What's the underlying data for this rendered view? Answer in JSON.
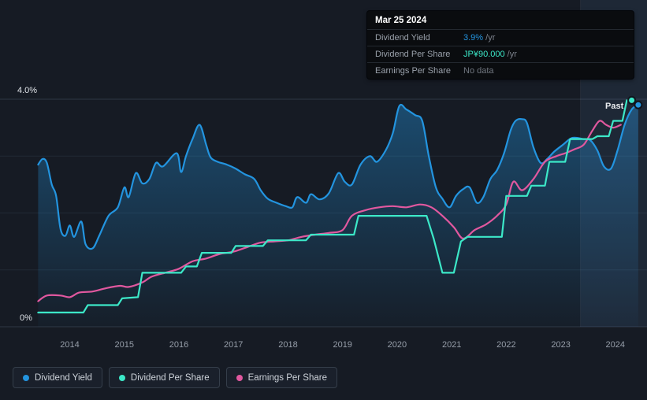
{
  "tooltip": {
    "date": "Mar 25 2024",
    "rows": [
      {
        "label": "Dividend Yield",
        "value": "3.9%",
        "suffix": " /yr",
        "value_color": "#2394df"
      },
      {
        "label": "Dividend Per Share",
        "value": "JP¥90.000",
        "suffix": " /yr",
        "value_color": "#3ce8c8"
      },
      {
        "label": "Earnings Per Share",
        "value": "No data",
        "suffix": "",
        "value_color": "#70767f"
      }
    ]
  },
  "legend": [
    {
      "label": "Dividend Yield",
      "color": "#2394df"
    },
    {
      "label": "Dividend Per Share",
      "color": "#3ce8c8"
    },
    {
      "label": "Earnings Per Share",
      "color": "#e1589f"
    }
  ],
  "colors": {
    "background": "#161b24",
    "gridline_major": "#2e3744",
    "gridline_minor": "#212a35",
    "axis_text": "#969ea9",
    "y_label_text": "#dfe3e8"
  },
  "chart_data": {
    "type": "line",
    "title": "",
    "xlabel": "",
    "ylabel": "",
    "y_unit": "%",
    "x_axis": {
      "min": 2013.4,
      "max": 2024.58,
      "ticks": [
        {
          "value": 2014,
          "label": "2014"
        },
        {
          "value": 2015,
          "label": "2015"
        },
        {
          "value": 2016,
          "label": "2016"
        },
        {
          "value": 2017,
          "label": "2017"
        },
        {
          "value": 2018,
          "label": "2018"
        },
        {
          "value": 2019,
          "label": "2019"
        },
        {
          "value": 2020,
          "label": "2020"
        },
        {
          "value": 2021,
          "label": "2021"
        },
        {
          "value": 2022,
          "label": "2022"
        },
        {
          "value": 2023,
          "label": "2023"
        },
        {
          "value": 2024,
          "label": "2024"
        }
      ]
    },
    "y_axis": {
      "min": 0,
      "max": 4,
      "gridlines": [
        0,
        1,
        2,
        3,
        4
      ],
      "labels": [
        {
          "value": 4,
          "label": "4.0%",
          "x": 22
        },
        {
          "value": 0,
          "label": "0%",
          "x": 25
        }
      ]
    },
    "past_region": {
      "start": 2023.36,
      "label": "Past"
    },
    "series": [
      {
        "name": "Dividend Yield",
        "color": "#2394df",
        "area": true,
        "curve": "smooth",
        "end_dot": true,
        "points": [
          [
            2013.42,
            2.85
          ],
          [
            2013.5,
            2.95
          ],
          [
            2013.58,
            2.88
          ],
          [
            2013.67,
            2.5
          ],
          [
            2013.75,
            2.3
          ],
          [
            2013.83,
            1.72
          ],
          [
            2013.92,
            1.6
          ],
          [
            2014.0,
            1.78
          ],
          [
            2014.08,
            1.58
          ],
          [
            2014.21,
            1.85
          ],
          [
            2014.29,
            1.45
          ],
          [
            2014.42,
            1.38
          ],
          [
            2014.54,
            1.6
          ],
          [
            2014.71,
            1.95
          ],
          [
            2014.88,
            2.1
          ],
          [
            2015.0,
            2.45
          ],
          [
            2015.08,
            2.28
          ],
          [
            2015.21,
            2.7
          ],
          [
            2015.33,
            2.52
          ],
          [
            2015.46,
            2.6
          ],
          [
            2015.58,
            2.88
          ],
          [
            2015.71,
            2.82
          ],
          [
            2015.96,
            3.05
          ],
          [
            2016.04,
            2.72
          ],
          [
            2016.13,
            3.0
          ],
          [
            2016.25,
            3.3
          ],
          [
            2016.38,
            3.55
          ],
          [
            2016.5,
            3.2
          ],
          [
            2016.58,
            2.98
          ],
          [
            2016.71,
            2.9
          ],
          [
            2016.88,
            2.85
          ],
          [
            2017.04,
            2.78
          ],
          [
            2017.21,
            2.68
          ],
          [
            2017.38,
            2.6
          ],
          [
            2017.5,
            2.4
          ],
          [
            2017.63,
            2.25
          ],
          [
            2017.79,
            2.18
          ],
          [
            2017.96,
            2.12
          ],
          [
            2018.08,
            2.1
          ],
          [
            2018.17,
            2.28
          ],
          [
            2018.33,
            2.18
          ],
          [
            2018.42,
            2.33
          ],
          [
            2018.58,
            2.24
          ],
          [
            2018.75,
            2.35
          ],
          [
            2018.92,
            2.7
          ],
          [
            2019.04,
            2.55
          ],
          [
            2019.17,
            2.5
          ],
          [
            2019.33,
            2.85
          ],
          [
            2019.5,
            3.0
          ],
          [
            2019.63,
            2.9
          ],
          [
            2019.79,
            3.1
          ],
          [
            2019.92,
            3.4
          ],
          [
            2020.04,
            3.88
          ],
          [
            2020.17,
            3.82
          ],
          [
            2020.33,
            3.72
          ],
          [
            2020.46,
            3.62
          ],
          [
            2020.58,
            3.0
          ],
          [
            2020.71,
            2.45
          ],
          [
            2020.83,
            2.25
          ],
          [
            2020.96,
            2.1
          ],
          [
            2021.08,
            2.3
          ],
          [
            2021.21,
            2.42
          ],
          [
            2021.33,
            2.45
          ],
          [
            2021.46,
            2.18
          ],
          [
            2021.58,
            2.28
          ],
          [
            2021.71,
            2.6
          ],
          [
            2021.83,
            2.75
          ],
          [
            2021.96,
            3.05
          ],
          [
            2022.08,
            3.45
          ],
          [
            2022.17,
            3.62
          ],
          [
            2022.29,
            3.65
          ],
          [
            2022.38,
            3.58
          ],
          [
            2022.5,
            3.15
          ],
          [
            2022.63,
            2.88
          ],
          [
            2022.75,
            2.95
          ],
          [
            2022.88,
            3.08
          ],
          [
            2023.04,
            3.2
          ],
          [
            2023.21,
            3.32
          ],
          [
            2023.42,
            3.3
          ],
          [
            2023.54,
            3.28
          ],
          [
            2023.67,
            3.1
          ],
          [
            2023.79,
            2.82
          ],
          [
            2023.92,
            2.78
          ],
          [
            2024.04,
            3.1
          ],
          [
            2024.17,
            3.55
          ],
          [
            2024.3,
            3.82
          ],
          [
            2024.42,
            3.9
          ]
        ]
      },
      {
        "name": "Dividend Per Share",
        "color": "#3ce8c8",
        "area": false,
        "curve": "linear",
        "end_dot": true,
        "points": [
          [
            2013.42,
            0.25
          ],
          [
            2014.25,
            0.25
          ],
          [
            2014.33,
            0.38
          ],
          [
            2014.88,
            0.38
          ],
          [
            2014.96,
            0.5
          ],
          [
            2015.25,
            0.52
          ],
          [
            2015.33,
            0.95
          ],
          [
            2016.04,
            0.95
          ],
          [
            2016.13,
            1.06
          ],
          [
            2016.33,
            1.06
          ],
          [
            2016.42,
            1.3
          ],
          [
            2016.96,
            1.3
          ],
          [
            2017.04,
            1.42
          ],
          [
            2017.54,
            1.42
          ],
          [
            2017.63,
            1.52
          ],
          [
            2018.33,
            1.52
          ],
          [
            2018.42,
            1.62
          ],
          [
            2019.21,
            1.62
          ],
          [
            2019.29,
            1.95
          ],
          [
            2020.54,
            1.95
          ],
          [
            2020.67,
            1.55
          ],
          [
            2020.83,
            0.95
          ],
          [
            2021.04,
            0.95
          ],
          [
            2021.17,
            1.5
          ],
          [
            2021.29,
            1.58
          ],
          [
            2021.92,
            1.58
          ],
          [
            2022.0,
            2.3
          ],
          [
            2022.38,
            2.3
          ],
          [
            2022.46,
            2.48
          ],
          [
            2022.71,
            2.48
          ],
          [
            2022.79,
            2.9
          ],
          [
            2023.08,
            2.9
          ],
          [
            2023.17,
            3.3
          ],
          [
            2023.58,
            3.3
          ],
          [
            2023.67,
            3.35
          ],
          [
            2023.88,
            3.35
          ],
          [
            2023.96,
            3.62
          ],
          [
            2024.13,
            3.62
          ],
          [
            2024.21,
            3.98
          ],
          [
            2024.3,
            3.98
          ]
        ]
      },
      {
        "name": "Earnings Per Share",
        "color": "#e1589f",
        "area": false,
        "curve": "smooth",
        "end_dot": false,
        "points": [
          [
            2013.42,
            0.45
          ],
          [
            2013.58,
            0.55
          ],
          [
            2013.83,
            0.55
          ],
          [
            2014.0,
            0.52
          ],
          [
            2014.17,
            0.6
          ],
          [
            2014.42,
            0.62
          ],
          [
            2014.67,
            0.68
          ],
          [
            2014.92,
            0.72
          ],
          [
            2015.08,
            0.7
          ],
          [
            2015.33,
            0.78
          ],
          [
            2015.5,
            0.88
          ],
          [
            2015.75,
            0.95
          ],
          [
            2016.0,
            1.02
          ],
          [
            2016.25,
            1.15
          ],
          [
            2016.5,
            1.2
          ],
          [
            2016.75,
            1.28
          ],
          [
            2017.0,
            1.32
          ],
          [
            2017.25,
            1.4
          ],
          [
            2017.5,
            1.48
          ],
          [
            2017.75,
            1.5
          ],
          [
            2018.0,
            1.52
          ],
          [
            2018.25,
            1.58
          ],
          [
            2018.5,
            1.62
          ],
          [
            2018.75,
            1.65
          ],
          [
            2019.0,
            1.7
          ],
          [
            2019.17,
            1.95
          ],
          [
            2019.42,
            2.05
          ],
          [
            2019.67,
            2.1
          ],
          [
            2019.92,
            2.12
          ],
          [
            2020.17,
            2.1
          ],
          [
            2020.42,
            2.15
          ],
          [
            2020.63,
            2.1
          ],
          [
            2020.83,
            1.95
          ],
          [
            2021.04,
            1.75
          ],
          [
            2021.21,
            1.55
          ],
          [
            2021.42,
            1.7
          ],
          [
            2021.63,
            1.8
          ],
          [
            2021.83,
            1.95
          ],
          [
            2022.0,
            2.15
          ],
          [
            2022.13,
            2.55
          ],
          [
            2022.29,
            2.4
          ],
          [
            2022.5,
            2.6
          ],
          [
            2022.71,
            2.9
          ],
          [
            2022.92,
            3.0
          ],
          [
            2023.08,
            3.05
          ],
          [
            2023.25,
            3.12
          ],
          [
            2023.42,
            3.2
          ],
          [
            2023.58,
            3.45
          ],
          [
            2023.71,
            3.62
          ],
          [
            2023.83,
            3.55
          ],
          [
            2023.96,
            3.5
          ],
          [
            2024.1,
            3.55
          ]
        ]
      }
    ]
  }
}
